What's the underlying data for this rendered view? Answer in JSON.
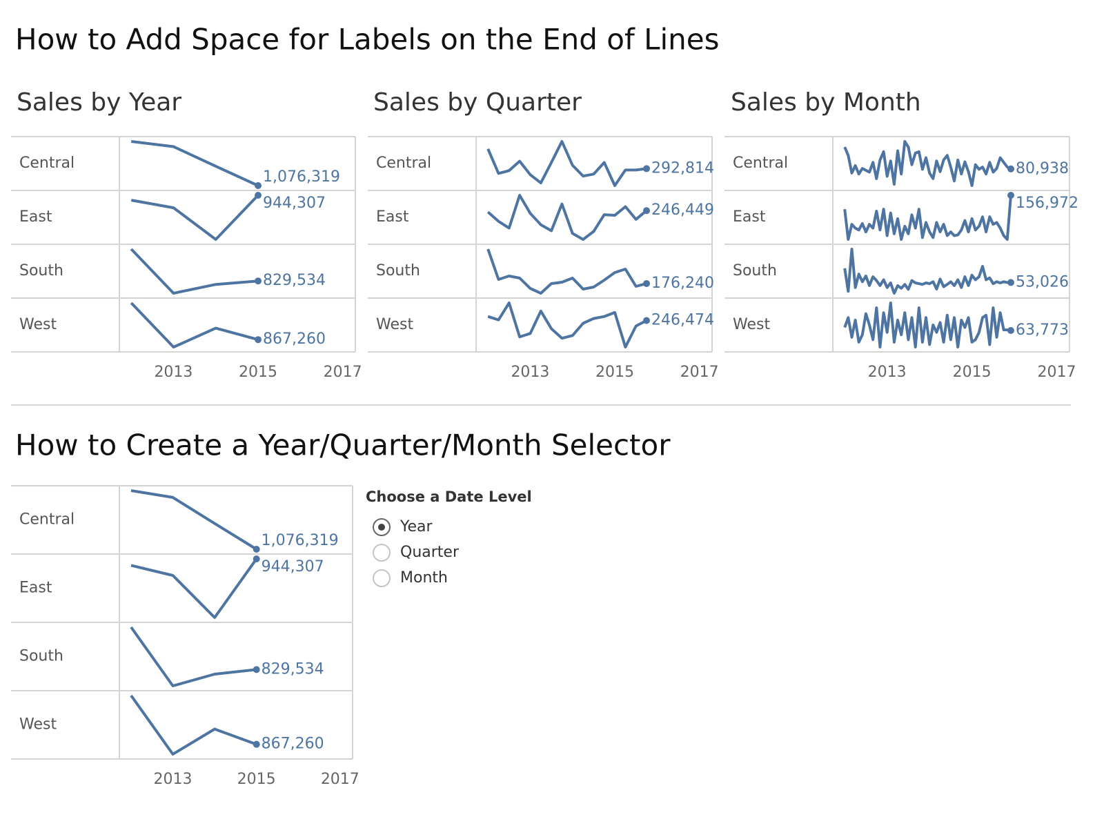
{
  "sections": [
    {
      "title": "How to Add Space for Labels on the End of Lines"
    },
    {
      "title": "How to Create a Year/Quarter/Month Selector"
    }
  ],
  "selector": {
    "label": "Choose a Date Level",
    "options": [
      "Year",
      "Quarter",
      "Month"
    ],
    "selected": "Year"
  },
  "chart_data": [
    {
      "type": "line",
      "title": "Sales by Year",
      "color": "#4e74a2",
      "x": [
        2012,
        2013,
        2014,
        2015
      ],
      "xlim": [
        2011.72,
        2017.3
      ],
      "xticks": [
        2013,
        2015,
        2017
      ],
      "series": [
        {
          "name": "Central",
          "values": [
            1290000,
            1265000,
            1170000,
            1076319
          ],
          "end_label": "1,076,319"
        },
        {
          "name": "East",
          "values": [
            925000,
            895000,
            770000,
            944307
          ],
          "end_label": "944,307"
        },
        {
          "name": "South",
          "values": [
            1010000,
            760000,
            810000,
            829534
          ],
          "end_label": "829,534"
        },
        {
          "name": "West",
          "values": [
            1100000,
            820000,
            940000,
            867260
          ],
          "end_label": "867,260"
        }
      ]
    },
    {
      "type": "line",
      "title": "Sales by Quarter",
      "color": "#4e74a2",
      "x": [
        2012,
        2012.25,
        2012.5,
        2012.75,
        2013,
        2013.25,
        2013.5,
        2013.75,
        2014,
        2014.25,
        2014.5,
        2014.75,
        2015,
        2015.25,
        2015.5,
        2015.75
      ],
      "xlim": [
        2011.72,
        2017.3
      ],
      "xticks": [
        2013,
        2015,
        2017
      ],
      "series": [
        {
          "name": "Central",
          "values": [
            409000,
            265000,
            281000,
            337000,
            257000,
            209000,
            329000,
            453000,
            313000,
            249000,
            261000,
            329000,
            193000,
            285000,
            285000,
            292814
          ],
          "end_label": "292,814"
        },
        {
          "name": "East",
          "values": [
            238000,
            182000,
            142000,
            338000,
            230000,
            162000,
            126000,
            286000,
            110000,
            74000,
            122000,
            222000,
            218000,
            270000,
            194000,
            246449
          ],
          "end_label": "246,449"
        },
        {
          "name": "South",
          "values": [
            376000,
            200000,
            220000,
            208000,
            148000,
            120000,
            176000,
            184000,
            208000,
            144000,
            156000,
            196000,
            240000,
            260000,
            160000,
            176240
          ],
          "end_label": "176,240"
        },
        {
          "name": "West",
          "values": [
            270000,
            250000,
            350000,
            150000,
            170000,
            302000,
            198000,
            142000,
            158000,
            230000,
            258000,
            270000,
            294000,
            90000,
            214000,
            246474
          ],
          "end_label": "246,474"
        }
      ]
    },
    {
      "type": "line",
      "title": "Sales by Month",
      "color": "#4e74a2",
      "x": [
        2012,
        2012.083,
        2012.167,
        2012.25,
        2012.333,
        2012.417,
        2012.5,
        2012.583,
        2012.667,
        2012.75,
        2012.833,
        2012.917,
        2013,
        2013.083,
        2013.167,
        2013.25,
        2013.333,
        2013.417,
        2013.5,
        2013.583,
        2013.667,
        2013.75,
        2013.833,
        2013.917,
        2014,
        2014.083,
        2014.167,
        2014.25,
        2014.333,
        2014.417,
        2014.5,
        2014.583,
        2014.667,
        2014.75,
        2014.833,
        2014.917,
        2015,
        2015.083,
        2015.167,
        2015.25,
        2015.333,
        2015.417,
        2015.5,
        2015.583,
        2015.667,
        2015.75,
        2015.833,
        2015.917
      ],
      "xlim": [
        2011.72,
        2017.3
      ],
      "xticks": [
        2013,
        2015,
        2017
      ],
      "series": [
        {
          "name": "Central",
          "values": [
            128000,
            110000,
            72000,
            88000,
            70000,
            82000,
            78000,
            74000,
            95000,
            60000,
            100000,
            118000,
            65000,
            98000,
            48000,
            120000,
            70000,
            140000,
            128000,
            90000,
            115000,
            118000,
            80000,
            105000,
            72000,
            60000,
            98000,
            75000,
            100000,
            110000,
            85000,
            55000,
            100000,
            70000,
            96000,
            75000,
            45000,
            90000,
            80000,
            85000,
            70000,
            95000,
            74000,
            82000,
            105000,
            95000,
            85000,
            80938
          ],
          "end_label": "80,938"
        },
        {
          "name": "East",
          "values": [
            120000,
            40000,
            80000,
            70000,
            65000,
            82000,
            60000,
            80000,
            70000,
            115000,
            65000,
            120000,
            50000,
            110000,
            55000,
            95000,
            40000,
            75000,
            55000,
            105000,
            70000,
            120000,
            45000,
            85000,
            60000,
            45000,
            85000,
            60000,
            80000,
            50000,
            60000,
            50000,
            52000,
            65000,
            90000,
            60000,
            95000,
            65000,
            75000,
            100000,
            60000,
            100000,
            80000,
            85000,
            70000,
            50000,
            40000,
            156972
          ],
          "end_label": "156,972"
        },
        {
          "name": "South",
          "values": [
            90000,
            30000,
            140000,
            40000,
            75000,
            55000,
            70000,
            45000,
            68000,
            58000,
            45000,
            60000,
            40000,
            52000,
            25000,
            45000,
            38000,
            48000,
            35000,
            58000,
            52000,
            50000,
            48000,
            52000,
            50000,
            55000,
            36000,
            62000,
            42000,
            48000,
            55000,
            45000,
            60000,
            40000,
            68000,
            45000,
            72000,
            60000,
            68000,
            95000,
            60000,
            65000,
            50000,
            55000,
            52000,
            55000,
            53000,
            53026
          ],
          "end_label": "53,026"
        },
        {
          "name": "West",
          "values": [
            70000,
            90000,
            50000,
            85000,
            40000,
            55000,
            98000,
            75000,
            45000,
            110000,
            30000,
            100000,
            60000,
            120000,
            40000,
            85000,
            55000,
            100000,
            45000,
            90000,
            30000,
            110000,
            40000,
            90000,
            35000,
            75000,
            60000,
            80000,
            40000,
            95000,
            45000,
            90000,
            30000,
            85000,
            70000,
            90000,
            40000,
            45000,
            60000,
            90000,
            95000,
            35000,
            110000,
            50000,
            100000,
            65000,
            65000,
            63773
          ],
          "end_label": "63,773"
        }
      ]
    },
    {
      "type": "line",
      "color": "#4e74a2",
      "x": [
        2012,
        2013,
        2014,
        2015
      ],
      "xlim": [
        2011.72,
        2017.3
      ],
      "xticks": [
        2013,
        2015,
        2017
      ],
      "series": [
        {
          "name": "Central",
          "values": [
            1290000,
            1265000,
            1170000,
            1076319
          ],
          "end_label": "1,076,319"
        },
        {
          "name": "East",
          "values": [
            925000,
            895000,
            770000,
            944307
          ],
          "end_label": "944,307"
        },
        {
          "name": "South",
          "values": [
            1010000,
            760000,
            810000,
            829534
          ],
          "end_label": "829,534"
        },
        {
          "name": "West",
          "values": [
            1100000,
            820000,
            940000,
            867260
          ],
          "end_label": "867,260"
        }
      ]
    }
  ]
}
